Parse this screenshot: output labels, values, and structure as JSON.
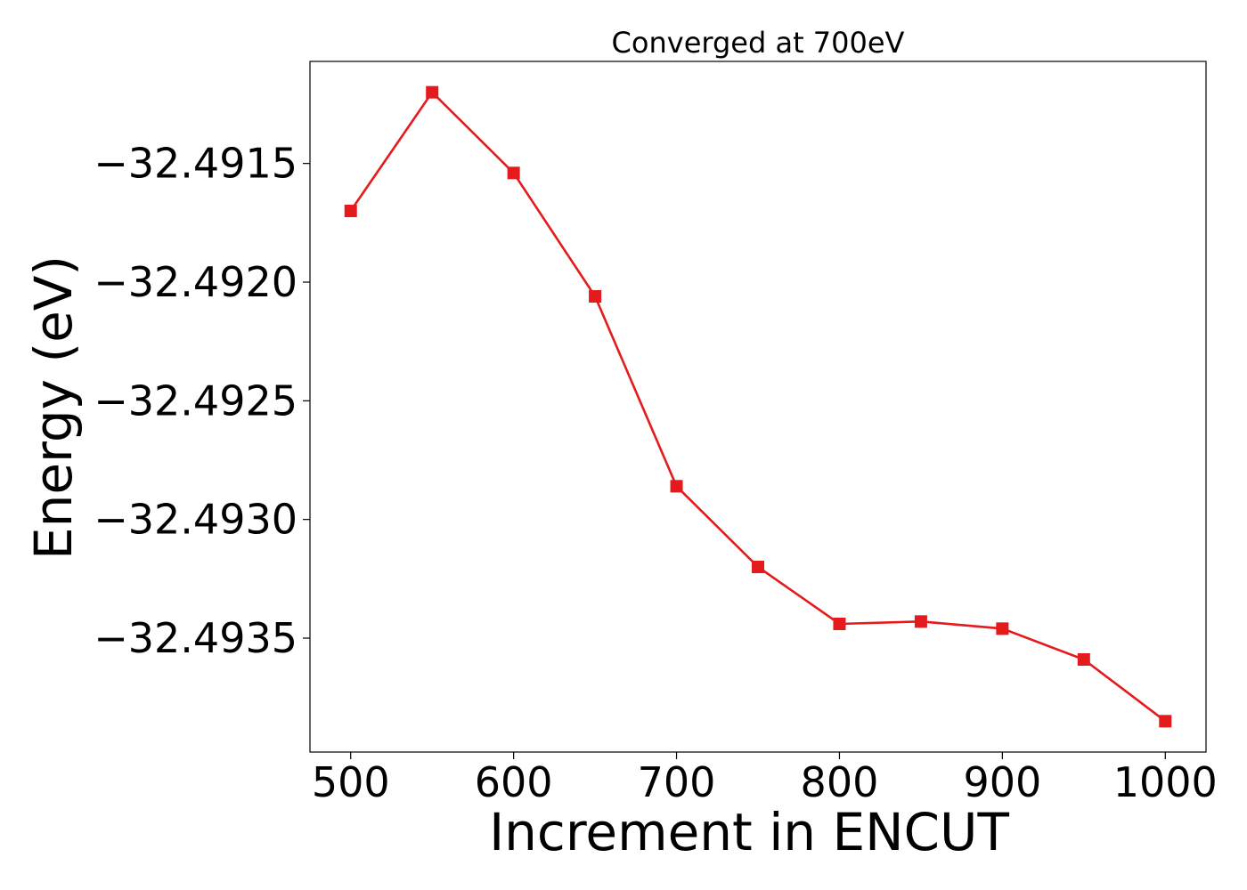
{
  "chart_data": {
    "type": "line",
    "title": "Converged at 700eV",
    "xlabel": "Increment in ENCUT",
    "ylabel": "Energy (eV)",
    "xlim": [
      475,
      1025
    ],
    "ylim": [
      -32.49398,
      -32.49107
    ],
    "x_ticks": [
      500,
      600,
      700,
      800,
      900,
      1000
    ],
    "x_tick_labels": [
      "500",
      "600",
      "700",
      "800",
      "900",
      "1000"
    ],
    "y_ticks": [
      -32.4915,
      -32.492,
      -32.4925,
      -32.493,
      -32.4935
    ],
    "y_tick_labels": [
      "−32.4915",
      "−32.4920",
      "−32.4925",
      "−32.4930",
      "−32.4935"
    ],
    "grid": false,
    "series": [
      {
        "color": "#e41a1c",
        "marker": "square",
        "x": [
          500,
          550,
          600,
          650,
          700,
          750,
          800,
          850,
          900,
          950,
          1000
        ],
        "y": [
          -32.4917,
          -32.4912,
          -32.49154,
          -32.49206,
          -32.49286,
          -32.4932,
          -32.49344,
          -32.49343,
          -32.49346,
          -32.49359,
          -32.49385
        ]
      }
    ]
  }
}
